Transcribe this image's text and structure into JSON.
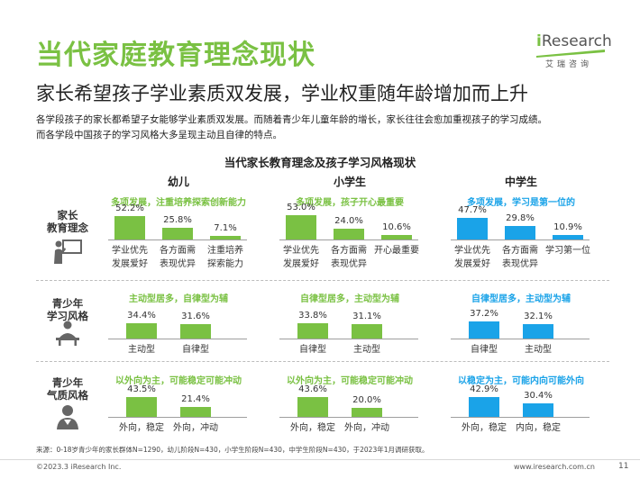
{
  "title": "当代家庭教育理念现状",
  "subtitle": "家长希望孩子学业素质双发展，学业权重随年龄增加而上升",
  "intro": [
    "各学段孩子的家长都希望子女能够学业素质双发展。而随着青少年儿童年龄的增长，家长往往会愈加重视孩子的学习成绩。",
    "而各学段中国孩子的学习风格大多呈现主动且自律的特点。"
  ],
  "logo": {
    "brand_i": "i",
    "brand_rest": "Research",
    "sub": "艾瑞咨询"
  },
  "colors": {
    "green": "#7ac143",
    "blue": "#1aa3e8",
    "text": "#222222",
    "grid": "#bdbdbd"
  },
  "chart_data": {
    "type": "bar",
    "title": "当代家长教育理念及孩子学习风格现状",
    "columns": [
      "幼儿",
      "小学生",
      "中学生"
    ],
    "rows": [
      {
        "label": [
          "家长",
          "教育理念"
        ],
        "icon": "teacher-board-icon",
        "panels": [
          {
            "headline": "多项发展，注重培养探索创新能力",
            "color": "#7ac143",
            "categories": [
              [
                "学业优先",
                "发展爱好"
              ],
              [
                "各方面需",
                "表现优异"
              ],
              [
                "注重培养",
                "探索能力"
              ]
            ],
            "values": [
              52.2,
              25.8,
              7.1
            ],
            "labels": [
              "52.2%",
              "25.8%",
              "7.1%"
            ]
          },
          {
            "headline": "多项发展，孩子开心最重要",
            "color": "#7ac143",
            "categories": [
              [
                "学业优先",
                "发展爱好"
              ],
              [
                "各方面需",
                "表现优异"
              ],
              [
                "开心最重要"
              ]
            ],
            "values": [
              53.0,
              24.0,
              10.6
            ],
            "labels": [
              "53.0%",
              "24.0%",
              "10.6%"
            ]
          },
          {
            "headline": "多项发展，学习是第一位的",
            "color": "#1aa3e8",
            "categories": [
              [
                "学业优先",
                "发展爱好"
              ],
              [
                "各方面需",
                "表现优异"
              ],
              [
                "学习第一位"
              ]
            ],
            "values": [
              47.7,
              29.8,
              10.9
            ],
            "labels": [
              "47.7%",
              "29.8%",
              "10.9%"
            ]
          }
        ]
      },
      {
        "label": [
          "青少年",
          "学习风格"
        ],
        "icon": "student-desk-icon",
        "panels": [
          {
            "headline": "主动型居多，自律型为辅",
            "color": "#7ac143",
            "categories": [
              [
                "主动型"
              ],
              [
                "自律型"
              ]
            ],
            "values": [
              34.4,
              31.6
            ],
            "labels": [
              "34.4%",
              "31.6%"
            ]
          },
          {
            "headline": "自律型居多，主动型为辅",
            "color": "#7ac143",
            "categories": [
              [
                "自律型"
              ],
              [
                "主动型"
              ]
            ],
            "values": [
              33.8,
              31.1
            ],
            "labels": [
              "33.8%",
              "31.1%"
            ]
          },
          {
            "headline": "自律型居多，主动型为辅",
            "color": "#1aa3e8",
            "categories": [
              [
                "自律型"
              ],
              [
                "主动型"
              ]
            ],
            "values": [
              37.2,
              32.1
            ],
            "labels": [
              "37.2%",
              "32.1%"
            ]
          }
        ]
      },
      {
        "label": [
          "青少年",
          "气质风格"
        ],
        "icon": "person-icon",
        "panels": [
          {
            "headline": "以外向为主，可能稳定可能冲动",
            "color": "#7ac143",
            "categories": [
              [
                "外向，稳定"
              ],
              [
                "外向，冲动"
              ]
            ],
            "values": [
              43.5,
              21.4
            ],
            "labels": [
              "43.5%",
              "21.4%"
            ]
          },
          {
            "headline": "以外向为主，可能稳定可能冲动",
            "color": "#7ac143",
            "categories": [
              [
                "外向，稳定"
              ],
              [
                "外向，冲动"
              ]
            ],
            "values": [
              43.6,
              20.0
            ],
            "labels": [
              "43.6%",
              "20.0%"
            ]
          },
          {
            "headline": "以稳定为主，可能内向可能外向",
            "color": "#1aa3e8",
            "categories": [
              [
                "外向，稳定"
              ],
              [
                "内向，稳定"
              ]
            ],
            "values": [
              42.9,
              30.4
            ],
            "labels": [
              "42.9%",
              "30.4%"
            ]
          }
        ]
      }
    ]
  },
  "source": "来源：0-18岁青少年的家长群体N=1290，幼儿阶段N=430，小学生阶段N=430，中学生阶段N=430，于2023年1月调研获取。",
  "footer": {
    "copyright": "©2023.3 iResearch Inc.",
    "site": "www.iresearch.com.cn",
    "page": "11"
  }
}
